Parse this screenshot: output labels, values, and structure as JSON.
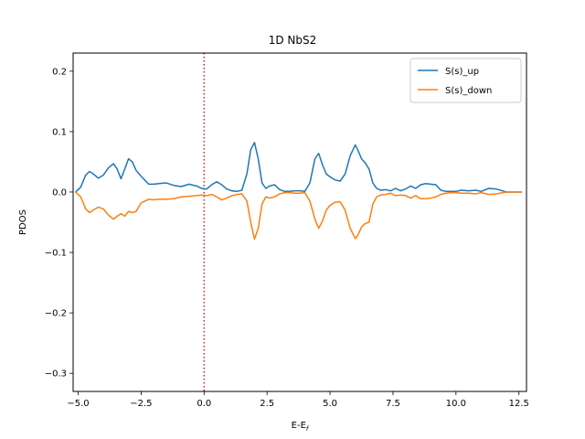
{
  "chart_data": {
    "type": "line",
    "title": "1D NbS2",
    "xlabel": "E-E",
    "xlabel_sub": "f",
    "ylabel": "PDOS",
    "xlim": [
      -5.2,
      12.8
    ],
    "ylim": [
      -0.33,
      0.23
    ],
    "xticks": [
      -5.0,
      -2.5,
      0.0,
      2.5,
      5.0,
      7.5,
      10.0,
      12.5
    ],
    "xtick_labels": [
      "−5.0",
      "−2.5",
      "0.0",
      "2.5",
      "5.0",
      "7.5",
      "10.0",
      "12.5"
    ],
    "yticks": [
      0.2,
      0.1,
      0.0,
      -0.1,
      -0.2,
      -0.3
    ],
    "ytick_labels": [
      "0.2",
      "0.1",
      "0.0",
      "−0.1",
      "−0.2",
      "−0.3"
    ],
    "grid": false,
    "legend_position": "top-right",
    "fermi_line": {
      "x": 0.0,
      "color": "#d62728",
      "style": "dotted"
    },
    "series": [
      {
        "name": "S(s)_up",
        "color": "#1f77b4",
        "x": [
          -5.1,
          -4.9,
          -4.7,
          -4.55,
          -4.4,
          -4.2,
          -4.0,
          -3.8,
          -3.6,
          -3.45,
          -3.3,
          -3.15,
          -3.0,
          -2.85,
          -2.7,
          -2.5,
          -2.2,
          -2.0,
          -1.8,
          -1.5,
          -1.2,
          -0.9,
          -0.6,
          -0.3,
          -0.1,
          0.1,
          0.3,
          0.5,
          0.7,
          0.9,
          1.1,
          1.3,
          1.5,
          1.7,
          1.85,
          2.0,
          2.15,
          2.3,
          2.45,
          2.6,
          2.8,
          3.0,
          3.2,
          3.4,
          3.6,
          3.8,
          4.0,
          4.2,
          4.4,
          4.55,
          4.7,
          4.85,
          5.0,
          5.2,
          5.4,
          5.6,
          5.8,
          6.0,
          6.1,
          6.25,
          6.4,
          6.55,
          6.7,
          6.85,
          7.0,
          7.2,
          7.4,
          7.6,
          7.8,
          8.0,
          8.2,
          8.4,
          8.6,
          8.8,
          9.0,
          9.2,
          9.4,
          9.6,
          9.8,
          10.0,
          10.2,
          10.5,
          10.8,
          11.0,
          11.3,
          11.6,
          12.0,
          12.3,
          12.6
        ],
        "values": [
          0.0,
          0.008,
          0.028,
          0.034,
          0.03,
          0.023,
          0.028,
          0.04,
          0.047,
          0.038,
          0.022,
          0.038,
          0.055,
          0.05,
          0.036,
          0.026,
          0.013,
          0.013,
          0.014,
          0.015,
          0.011,
          0.009,
          0.013,
          0.01,
          0.006,
          0.005,
          0.012,
          0.017,
          0.012,
          0.005,
          0.002,
          0.001,
          0.003,
          0.03,
          0.07,
          0.082,
          0.055,
          0.015,
          0.006,
          0.01,
          0.012,
          0.004,
          0.001,
          0.001,
          0.002,
          0.002,
          0.001,
          0.015,
          0.055,
          0.064,
          0.045,
          0.03,
          0.025,
          0.02,
          0.018,
          0.03,
          0.06,
          0.078,
          0.07,
          0.055,
          0.048,
          0.038,
          0.015,
          0.006,
          0.003,
          0.004,
          0.002,
          0.006,
          0.002,
          0.005,
          0.01,
          0.006,
          0.012,
          0.014,
          0.013,
          0.012,
          0.003,
          0.001,
          0.001,
          0.001,
          0.003,
          0.002,
          0.003,
          0.001,
          0.006,
          0.005,
          0.0,
          0.0,
          0.0
        ]
      },
      {
        "name": "S(s)_down",
        "color": "#ff7f0e",
        "x": [
          -5.1,
          -4.9,
          -4.7,
          -4.55,
          -4.4,
          -4.2,
          -4.0,
          -3.8,
          -3.6,
          -3.45,
          -3.3,
          -3.15,
          -3.0,
          -2.85,
          -2.7,
          -2.5,
          -2.2,
          -2.0,
          -1.8,
          -1.5,
          -1.2,
          -0.9,
          -0.6,
          -0.3,
          -0.1,
          0.1,
          0.3,
          0.5,
          0.7,
          0.9,
          1.1,
          1.3,
          1.5,
          1.7,
          1.85,
          2.0,
          2.15,
          2.3,
          2.45,
          2.6,
          2.8,
          3.0,
          3.2,
          3.4,
          3.6,
          3.8,
          4.0,
          4.2,
          4.4,
          4.55,
          4.7,
          4.85,
          5.0,
          5.2,
          5.4,
          5.6,
          5.8,
          6.0,
          6.1,
          6.25,
          6.4,
          6.55,
          6.7,
          6.85,
          7.0,
          7.2,
          7.4,
          7.6,
          7.8,
          8.0,
          8.2,
          8.4,
          8.6,
          8.8,
          9.0,
          9.2,
          9.4,
          9.6,
          9.8,
          10.0,
          10.2,
          10.5,
          10.8,
          11.0,
          11.3,
          11.6,
          12.0,
          12.3,
          12.6
        ],
        "values": [
          0.0,
          -0.008,
          -0.028,
          -0.034,
          -0.03,
          -0.025,
          -0.028,
          -0.038,
          -0.045,
          -0.04,
          -0.036,
          -0.04,
          -0.032,
          -0.034,
          -0.032,
          -0.018,
          -0.012,
          -0.013,
          -0.012,
          -0.012,
          -0.011,
          -0.008,
          -0.007,
          -0.006,
          -0.005,
          -0.006,
          -0.004,
          -0.008,
          -0.013,
          -0.01,
          -0.006,
          -0.004,
          -0.003,
          -0.015,
          -0.05,
          -0.078,
          -0.06,
          -0.02,
          -0.008,
          -0.01,
          -0.008,
          -0.003,
          -0.001,
          -0.001,
          -0.002,
          -0.002,
          -0.001,
          -0.015,
          -0.045,
          -0.06,
          -0.048,
          -0.03,
          -0.022,
          -0.017,
          -0.016,
          -0.03,
          -0.06,
          -0.077,
          -0.072,
          -0.058,
          -0.052,
          -0.05,
          -0.02,
          -0.008,
          -0.005,
          -0.004,
          -0.002,
          -0.006,
          -0.005,
          -0.006,
          -0.01,
          -0.006,
          -0.011,
          -0.011,
          -0.01,
          -0.008,
          -0.004,
          -0.002,
          -0.001,
          -0.001,
          -0.002,
          -0.002,
          -0.003,
          -0.001,
          -0.004,
          -0.003,
          0.0,
          0.0,
          0.0
        ]
      }
    ]
  }
}
